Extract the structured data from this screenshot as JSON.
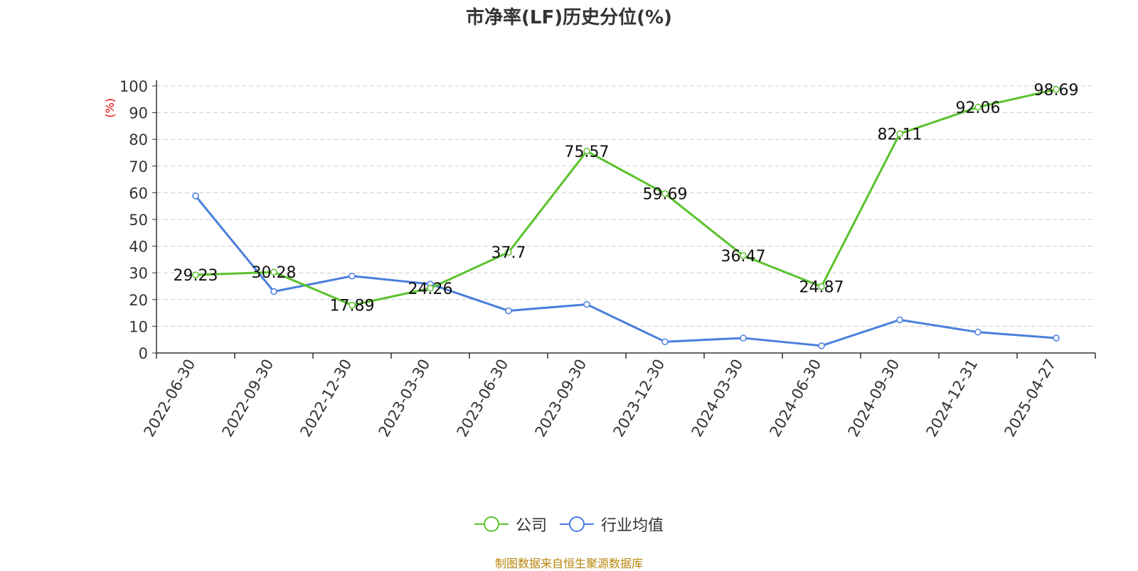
{
  "chart_data": {
    "type": "line",
    "title": "市净率(LF)历史分位(%)",
    "ylabel": "(%)",
    "xlabel": "",
    "ylim": [
      0,
      100
    ],
    "yticks": [
      0,
      10,
      20,
      30,
      40,
      50,
      60,
      70,
      80,
      90,
      100
    ],
    "grid": true,
    "legend_position": "bottom",
    "categories": [
      "2022-06-30",
      "2022-09-30",
      "2022-12-30",
      "2023-03-30",
      "2023-06-30",
      "2023-09-30",
      "2023-12-30",
      "2024-03-30",
      "2024-06-30",
      "2024-09-30",
      "2024-12-31",
      "2025-04-27"
    ],
    "series": [
      {
        "name": "公司",
        "color": "#5ac22d",
        "values": [
          29.23,
          30.28,
          17.89,
          24.26,
          37.7,
          75.57,
          59.69,
          36.47,
          24.87,
          82.11,
          92.06,
          98.69
        ],
        "labels": [
          "29.23",
          "30.28",
          "17.89",
          "24.26",
          "37.7",
          "75.57",
          "59.69",
          "36.47",
          "24.87",
          "82.11",
          "92.06",
          "98.69"
        ]
      },
      {
        "name": "行业均值",
        "color": "#4a7fdc",
        "values": [
          58.8,
          23.0,
          28.8,
          25.8,
          15.8,
          18.2,
          4.2,
          5.6,
          2.7,
          12.4,
          7.8,
          5.6
        ]
      }
    ]
  },
  "source": "制图数据来自恒生聚源数据库"
}
